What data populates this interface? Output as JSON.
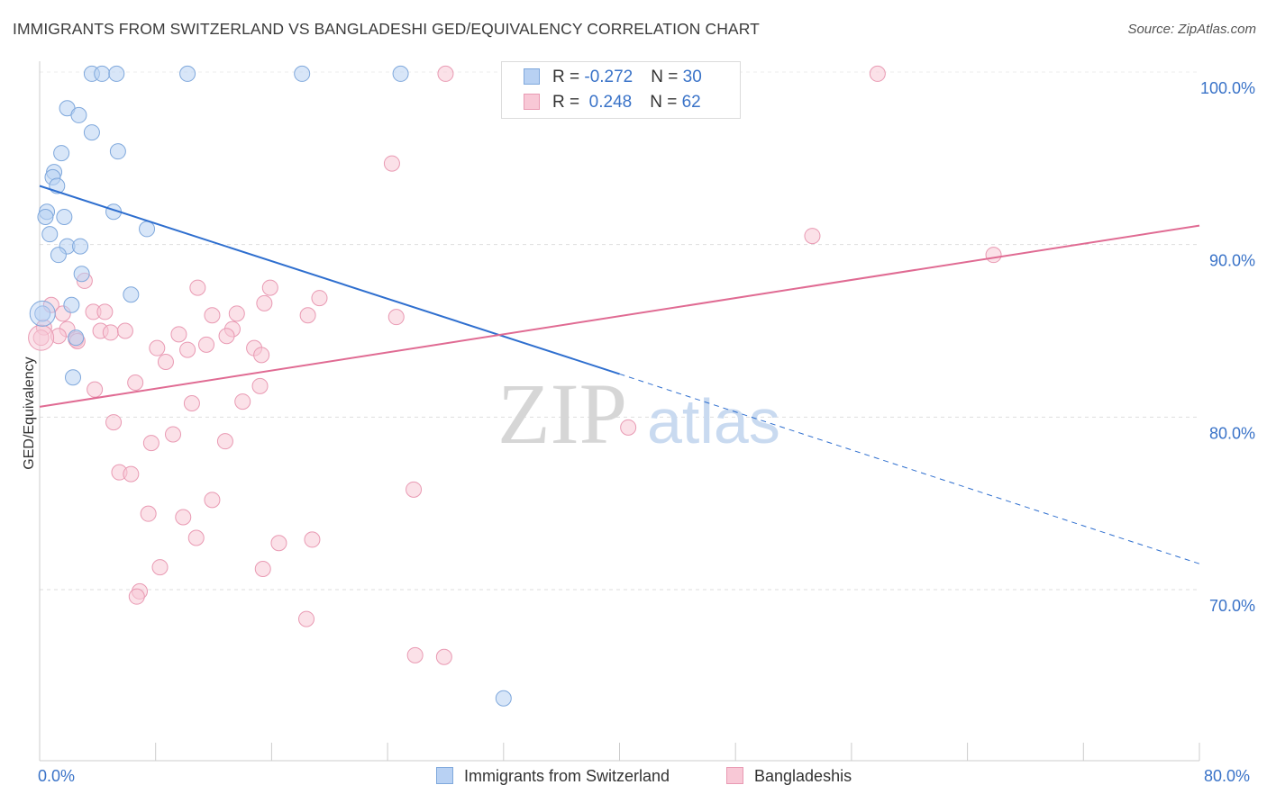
{
  "header": {
    "title": "IMMIGRANTS FROM SWITZERLAND VS BANGLADESHI GED/EQUIVALENCY CORRELATION CHART",
    "source": "Source: ZipAtlas.com"
  },
  "watermark": {
    "zip": "ZIP",
    "atlas": "atlas"
  },
  "legend": {
    "rows": [
      {
        "r_label": "R = ",
        "r_value": "-0.272",
        "n_label": "N = ",
        "n_value": "30"
      },
      {
        "r_label": "R = ",
        "r_value": " 0.248",
        "n_label": "N = ",
        "n_value": "62"
      }
    ]
  },
  "bottom_legend": {
    "swiss": "Immigrants from Switzerland",
    "bangla": "Bangladeshis"
  },
  "axes": {
    "x_min_label": "0.0%",
    "x_max_label": "80.0%"
  },
  "colors": {
    "swiss_fill": "#b8d1f3",
    "swiss_stroke": "#7fa8dc",
    "swiss_line": "#2f6fcf",
    "bangla_fill": "#f8c8d6",
    "bangla_stroke": "#e99ab3",
    "bangla_line": "#e06b93",
    "grid": "#dedede",
    "axis_text": "#3a73c8"
  },
  "chart_data": {
    "type": "scatter",
    "title": "IMMIGRANTS FROM SWITZERLAND VS BANGLADESHI GED/EQUIVALENCY CORRELATION CHART",
    "xlabel": "",
    "ylabel": "GED/Equivalency",
    "xlim": [
      0,
      80
    ],
    "ylim": [
      60,
      100.5
    ],
    "yticks": [
      70,
      80,
      90,
      100
    ],
    "ytick_labels": [
      "70.0%",
      "80.0%",
      "90.0%",
      "100.0%"
    ],
    "grid": true,
    "legend_position": "top-center",
    "series": [
      {
        "name": "Immigrants from Switzerland",
        "r": -0.272,
        "n": 30,
        "trend": {
          "x0": 0,
          "y0": 93.4,
          "x1": 40,
          "y1": 82.5,
          "dashed_to_x": 80,
          "dashed_to_y": 71.5
        },
        "points": [
          [
            3.6,
            99.9
          ],
          [
            4.3,
            99.9
          ],
          [
            5.3,
            99.9
          ],
          [
            10.2,
            99.9
          ],
          [
            18.1,
            99.9
          ],
          [
            24.9,
            99.9
          ],
          [
            1.9,
            97.9
          ],
          [
            2.7,
            97.5
          ],
          [
            3.6,
            96.5
          ],
          [
            1.5,
            95.3
          ],
          [
            5.4,
            95.4
          ],
          [
            1.0,
            94.2
          ],
          [
            0.9,
            93.9
          ],
          [
            1.2,
            93.4
          ],
          [
            0.5,
            91.9
          ],
          [
            0.4,
            91.6
          ],
          [
            1.7,
            91.6
          ],
          [
            5.1,
            91.9
          ],
          [
            0.7,
            90.6
          ],
          [
            7.4,
            90.9
          ],
          [
            1.9,
            89.9
          ],
          [
            2.8,
            89.9
          ],
          [
            1.3,
            89.4
          ],
          [
            2.9,
            88.3
          ],
          [
            6.3,
            87.1
          ],
          [
            2.2,
            86.5
          ],
          [
            0.2,
            86.0
          ],
          [
            2.5,
            84.6
          ],
          [
            2.3,
            82.3
          ],
          [
            32.0,
            63.7
          ]
        ]
      },
      {
        "name": "Bangladeshis",
        "r": 0.248,
        "n": 62,
        "trend": {
          "x0": 0,
          "y0": 80.6,
          "x1": 80,
          "y1": 91.1
        },
        "points": [
          [
            28.0,
            99.9
          ],
          [
            57.8,
            99.9
          ],
          [
            24.3,
            94.7
          ],
          [
            53.3,
            90.5
          ],
          [
            65.8,
            89.4
          ],
          [
            3.1,
            87.9
          ],
          [
            10.9,
            87.5
          ],
          [
            15.9,
            87.5
          ],
          [
            19.3,
            86.9
          ],
          [
            15.5,
            86.6
          ],
          [
            0.8,
            86.5
          ],
          [
            1.6,
            86.0
          ],
          [
            3.7,
            86.1
          ],
          [
            4.5,
            86.1
          ],
          [
            11.9,
            85.9
          ],
          [
            13.6,
            86.0
          ],
          [
            18.5,
            85.9
          ],
          [
            24.6,
            85.8
          ],
          [
            0.3,
            85.2
          ],
          [
            1.9,
            85.1
          ],
          [
            4.2,
            85.0
          ],
          [
            4.9,
            84.9
          ],
          [
            5.9,
            85.0
          ],
          [
            13.3,
            85.1
          ],
          [
            9.6,
            84.8
          ],
          [
            12.9,
            84.7
          ],
          [
            1.3,
            84.7
          ],
          [
            2.5,
            84.5
          ],
          [
            2.6,
            84.4
          ],
          [
            0.1,
            84.6
          ],
          [
            11.5,
            84.2
          ],
          [
            8.1,
            84.0
          ],
          [
            10.2,
            83.9
          ],
          [
            14.8,
            84.0
          ],
          [
            15.3,
            83.6
          ],
          [
            8.7,
            83.2
          ],
          [
            6.6,
            82.0
          ],
          [
            15.2,
            81.8
          ],
          [
            3.8,
            81.6
          ],
          [
            10.5,
            80.8
          ],
          [
            14.0,
            80.9
          ],
          [
            5.1,
            79.7
          ],
          [
            40.6,
            79.4
          ],
          [
            9.2,
            79.0
          ],
          [
            7.7,
            78.5
          ],
          [
            12.8,
            78.6
          ],
          [
            5.5,
            76.8
          ],
          [
            6.3,
            76.7
          ],
          [
            25.8,
            75.8
          ],
          [
            11.9,
            75.2
          ],
          [
            7.5,
            74.4
          ],
          [
            9.9,
            74.2
          ],
          [
            10.8,
            73.0
          ],
          [
            16.5,
            72.7
          ],
          [
            18.8,
            72.9
          ],
          [
            8.3,
            71.3
          ],
          [
            15.4,
            71.2
          ],
          [
            6.9,
            69.9
          ],
          [
            6.7,
            69.6
          ],
          [
            18.4,
            68.3
          ],
          [
            25.9,
            66.2
          ],
          [
            27.9,
            66.1
          ]
        ]
      }
    ]
  }
}
